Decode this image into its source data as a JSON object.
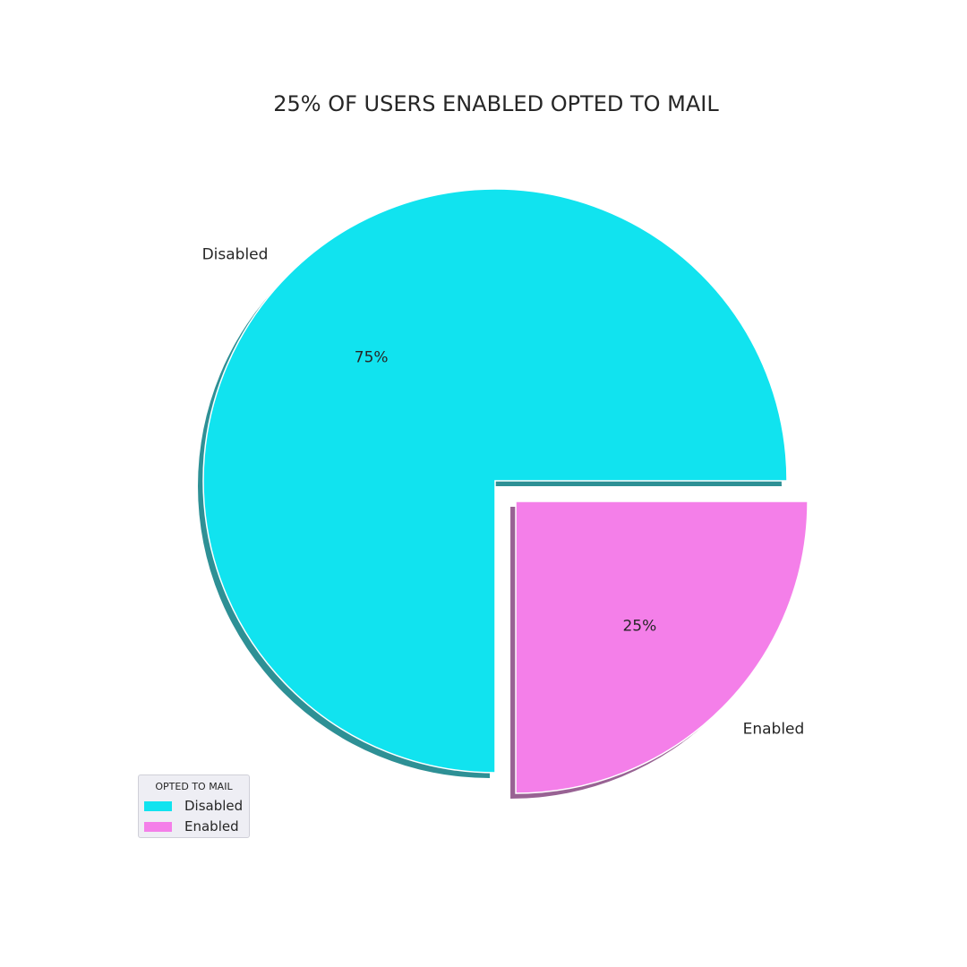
{
  "chart_data": {
    "type": "pie",
    "title": "25% OF USERS ENABLED OPTED TO MAIL",
    "categories": [
      "Disabled",
      "Enabled"
    ],
    "values": [
      75,
      25
    ],
    "percent_labels": [
      "75%",
      "25%"
    ],
    "colors": [
      "#11e3ef",
      "#f47fe9"
    ],
    "exploded": [
      false,
      true
    ],
    "shadow": true,
    "start_angle_deg": 0,
    "legend": {
      "title": "OPTED TO MAIL",
      "placement": "lower-left",
      "items": [
        "Disabled",
        "Enabled"
      ]
    }
  }
}
